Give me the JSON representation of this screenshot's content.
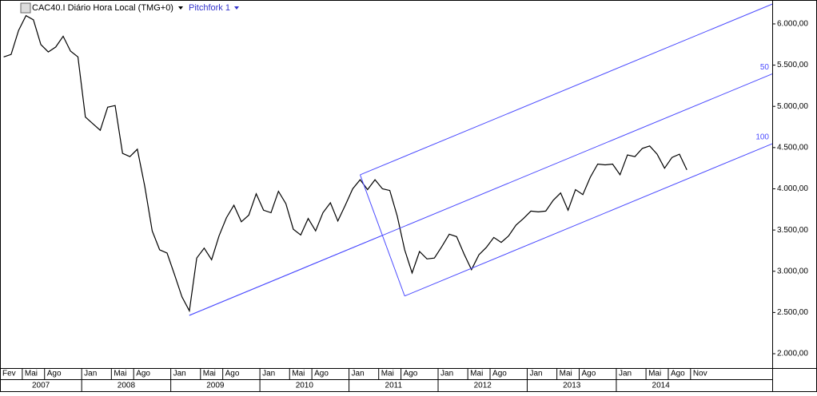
{
  "chart_data": {
    "type": "line",
    "title": "CAC40.I Diário Hora Local (TMG+0)",
    "x": [
      "2007-02",
      "2007-03",
      "2007-04",
      "2007-05",
      "2007-06",
      "2007-07",
      "2007-08",
      "2007-09",
      "2007-10",
      "2007-11",
      "2007-12",
      "2008-01",
      "2008-02",
      "2008-03",
      "2008-04",
      "2008-05",
      "2008-06",
      "2008-07",
      "2008-08",
      "2008-09",
      "2008-10",
      "2008-11",
      "2008-12",
      "2009-01",
      "2009-02",
      "2009-03",
      "2009-04",
      "2009-05",
      "2009-06",
      "2009-07",
      "2009-08",
      "2009-09",
      "2009-10",
      "2009-11",
      "2009-12",
      "2010-01",
      "2010-02",
      "2010-03",
      "2010-04",
      "2010-05",
      "2010-06",
      "2010-07",
      "2010-08",
      "2010-09",
      "2010-10",
      "2010-11",
      "2010-12",
      "2011-01",
      "2011-02",
      "2011-03",
      "2011-04",
      "2011-05",
      "2011-06",
      "2011-07",
      "2011-08",
      "2011-09",
      "2011-10",
      "2011-11",
      "2011-12",
      "2012-01",
      "2012-02",
      "2012-03",
      "2012-04",
      "2012-05",
      "2012-06",
      "2012-07",
      "2012-08",
      "2012-09",
      "2012-10",
      "2012-11",
      "2012-12",
      "2013-01",
      "2013-02",
      "2013-03",
      "2013-04",
      "2013-05",
      "2013-06",
      "2013-07",
      "2013-08",
      "2013-09",
      "2013-10",
      "2013-11",
      "2013-12",
      "2014-01",
      "2014-02",
      "2014-03",
      "2014-04",
      "2014-05",
      "2014-06",
      "2014-07",
      "2014-08",
      "2014-09",
      "2014-10"
    ],
    "series": [
      {
        "name": "CAC40.I",
        "color": "#000000",
        "values": [
          5600,
          5630,
          5920,
          6100,
          6050,
          5750,
          5660,
          5720,
          5850,
          5670,
          5600,
          4870,
          4790,
          4710,
          4990,
          5010,
          4430,
          4390,
          4480,
          4030,
          3490,
          3260,
          3220,
          2960,
          2690,
          2520,
          3160,
          3280,
          3140,
          3430,
          3650,
          3800,
          3600,
          3680,
          3940,
          3740,
          3710,
          3970,
          3820,
          3510,
          3440,
          3640,
          3490,
          3710,
          3830,
          3610,
          3800,
          4000,
          4110,
          3990,
          4110,
          4000,
          3980,
          3670,
          3260,
          2980,
          3240,
          3150,
          3160,
          3300,
          3450,
          3420,
          3210,
          3020,
          3200,
          3290,
          3410,
          3350,
          3430,
          3560,
          3640,
          3730,
          3720,
          3730,
          3860,
          3950,
          3740,
          3990,
          3930,
          4140,
          4300,
          4290,
          4300,
          4170,
          4410,
          4390,
          4490,
          4520,
          4420,
          4250,
          4380,
          4420,
          4230
        ]
      }
    ],
    "pitchfork": {
      "name": "Pitchfork 1",
      "color": "#4a4aff",
      "levels": [
        "0",
        "50",
        "100"
      ],
      "points": [
        {
          "x": "2009-03",
          "value": 2465
        },
        {
          "x": "2011-02",
          "value": 4170
        },
        {
          "x": "2011-08",
          "value": 2700
        }
      ]
    },
    "xlim": [
      "2007-02",
      "2015-10"
    ],
    "ylim": [
      1826,
      6290
    ],
    "yticks": [
      {
        "value": 2000,
        "label": "2.000,00"
      },
      {
        "value": 2500,
        "label": "2.500,00"
      },
      {
        "value": 3000,
        "label": "3.000,00"
      },
      {
        "value": 3500,
        "label": "3.500,00"
      },
      {
        "value": 4000,
        "label": "4.000,00"
      },
      {
        "value": 4500,
        "label": "4.500,00"
      },
      {
        "value": 5000,
        "label": "5.000,00"
      },
      {
        "value": 5500,
        "label": "5.500,00"
      },
      {
        "value": 6000,
        "label": "6.000,00"
      }
    ],
    "xticks": [
      {
        "value": "2007-02",
        "label": "Fev"
      },
      {
        "value": "2007-05",
        "label": "Mai"
      },
      {
        "value": "2007-08",
        "label": "Ago"
      },
      {
        "value": "2008-01",
        "label": "Jan"
      },
      {
        "value": "2008-05",
        "label": "Mai"
      },
      {
        "value": "2008-08",
        "label": "Ago"
      },
      {
        "value": "2009-01",
        "label": "Jan"
      },
      {
        "value": "2009-05",
        "label": "Mai"
      },
      {
        "value": "2009-08",
        "label": "Ago"
      },
      {
        "value": "2010-01",
        "label": "Jan"
      },
      {
        "value": "2010-05",
        "label": "Mai"
      },
      {
        "value": "2010-08",
        "label": "Ago"
      },
      {
        "value": "2011-01",
        "label": "Jan"
      },
      {
        "value": "2011-05",
        "label": "Mai"
      },
      {
        "value": "2011-08",
        "label": "Ago"
      },
      {
        "value": "2012-01",
        "label": "Jan"
      },
      {
        "value": "2012-05",
        "label": "Mai"
      },
      {
        "value": "2012-08",
        "label": "Ago"
      },
      {
        "value": "2013-01",
        "label": "Jan"
      },
      {
        "value": "2013-05",
        "label": "Mai"
      },
      {
        "value": "2013-08",
        "label": "Ago"
      },
      {
        "value": "2014-01",
        "label": "Jan"
      },
      {
        "value": "2014-05",
        "label": "Mai"
      },
      {
        "value": "2014-08",
        "label": "Ago"
      },
      {
        "value": "2014-11",
        "label": "Nov"
      }
    ],
    "years": [
      "2007",
      "2008",
      "2009",
      "2010",
      "2011",
      "2012",
      "2013",
      "2014"
    ],
    "grid": false
  }
}
